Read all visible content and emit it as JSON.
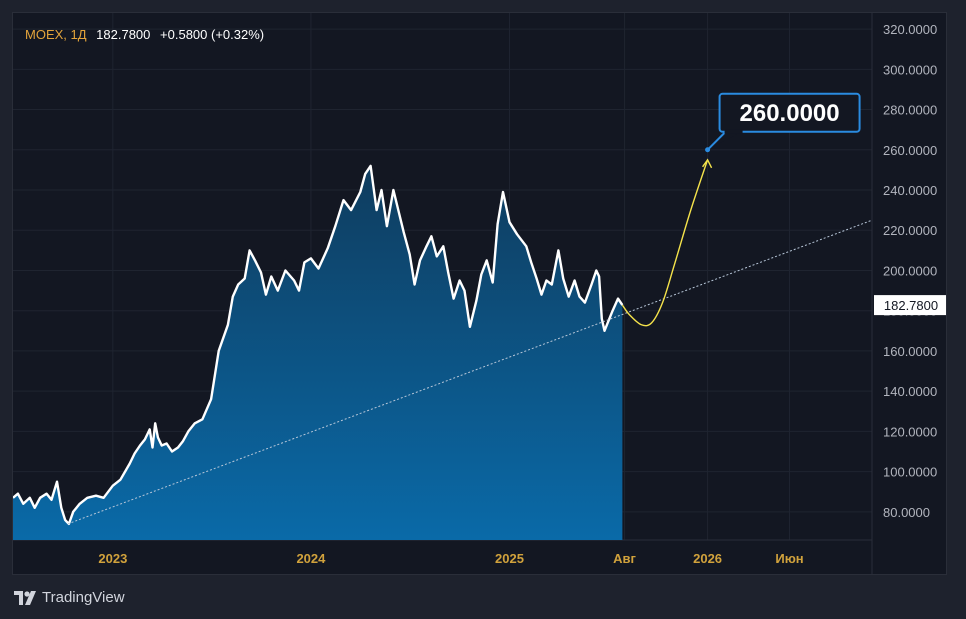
{
  "header": {
    "symbol": "MOEX, 1Д",
    "price": "182.7800",
    "change": "+0.5800 (+0.32%)"
  },
  "footer": {
    "brand": "TradingView",
    "logo_icon": "tradingview-logo-icon"
  },
  "colors": {
    "background": "#131722",
    "line": "#ffffff",
    "area_top": "#0f3c5e",
    "area_bottom": "#0a6aa8",
    "trend": "#b8c7d9",
    "forecast": "#f5e34b",
    "callout": "#2a8be0",
    "axis_text": "#b2b5be",
    "time_text": "#d1a23c"
  },
  "chart_data": {
    "type": "area",
    "y_axis": {
      "range": [
        66,
        328
      ],
      "ticks": [
        "80.0000",
        "100.0000",
        "120.0000",
        "140.0000",
        "160.0000",
        "180.0000",
        "200.0000",
        "220.0000",
        "240.0000",
        "260.0000",
        "280.0000",
        "300.0000",
        "320.0000"
      ],
      "tick_values": [
        80,
        100,
        120,
        140,
        160,
        180,
        200,
        220,
        240,
        260,
        280,
        300,
        320
      ],
      "last_price_label": "182.7800",
      "last_price": 182.78
    },
    "x_axis": {
      "range": [
        "2022-07-01",
        "2026-10-31"
      ],
      "ticks": [
        {
          "label": "2023",
          "date": "2023-01-01"
        },
        {
          "label": "2024",
          "date": "2024-01-01"
        },
        {
          "label": "2025",
          "date": "2025-01-01"
        },
        {
          "label": "Авг",
          "date": "2025-08-01"
        },
        {
          "label": "2026",
          "date": "2026-01-01"
        },
        {
          "label": "Июн",
          "date": "2026-06-01"
        }
      ]
    },
    "grid": true,
    "series": [
      {
        "values": [
          [
            "2022-07-01",
            87
          ],
          [
            "2022-07-10",
            89
          ],
          [
            "2022-07-20",
            84
          ],
          [
            "2022-08-01",
            87
          ],
          [
            "2022-08-10",
            82
          ],
          [
            "2022-08-20",
            87
          ],
          [
            "2022-09-01",
            89
          ],
          [
            "2022-09-10",
            86
          ],
          [
            "2022-09-20",
            95
          ],
          [
            "2022-09-28",
            82
          ],
          [
            "2022-10-05",
            76
          ],
          [
            "2022-10-12",
            74
          ],
          [
            "2022-10-20",
            80
          ],
          [
            "2022-11-01",
            84
          ],
          [
            "2022-11-15",
            87
          ],
          [
            "2022-12-01",
            88
          ],
          [
            "2022-12-15",
            87
          ],
          [
            "2023-01-01",
            93
          ],
          [
            "2023-01-15",
            96
          ],
          [
            "2023-02-01",
            104
          ],
          [
            "2023-02-10",
            109
          ],
          [
            "2023-02-20",
            113
          ],
          [
            "2023-03-01",
            116
          ],
          [
            "2023-03-10",
            121
          ],
          [
            "2023-03-15",
            112
          ],
          [
            "2023-03-20",
            124
          ],
          [
            "2023-03-25",
            117
          ],
          [
            "2023-04-01",
            113
          ],
          [
            "2023-04-10",
            114
          ],
          [
            "2023-04-20",
            110
          ],
          [
            "2023-05-01",
            112
          ],
          [
            "2023-05-10",
            115
          ],
          [
            "2023-05-20",
            120
          ],
          [
            "2023-06-01",
            124
          ],
          [
            "2023-06-15",
            126
          ],
          [
            "2023-07-01",
            136
          ],
          [
            "2023-07-15",
            160
          ],
          [
            "2023-08-01",
            173
          ],
          [
            "2023-08-10",
            187
          ],
          [
            "2023-08-20",
            193
          ],
          [
            "2023-09-01",
            196
          ],
          [
            "2023-09-10",
            210
          ],
          [
            "2023-09-20",
            205
          ],
          [
            "2023-10-01",
            199
          ],
          [
            "2023-10-10",
            188
          ],
          [
            "2023-10-20",
            197
          ],
          [
            "2023-11-01",
            190
          ],
          [
            "2023-11-15",
            200
          ],
          [
            "2023-12-01",
            195
          ],
          [
            "2023-12-10",
            190
          ],
          [
            "2023-12-20",
            204
          ],
          [
            "2024-01-01",
            206
          ],
          [
            "2024-01-15",
            201
          ],
          [
            "2024-02-01",
            211
          ],
          [
            "2024-02-15",
            222
          ],
          [
            "2024-03-01",
            235
          ],
          [
            "2024-03-15",
            230
          ],
          [
            "2024-04-01",
            239
          ],
          [
            "2024-04-10",
            248
          ],
          [
            "2024-04-20",
            252
          ],
          [
            "2024-05-01",
            230
          ],
          [
            "2024-05-10",
            240
          ],
          [
            "2024-05-20",
            222
          ],
          [
            "2024-06-01",
            240
          ],
          [
            "2024-06-10",
            230
          ],
          [
            "2024-06-20",
            219
          ],
          [
            "2024-07-01",
            208
          ],
          [
            "2024-07-10",
            193
          ],
          [
            "2024-07-20",
            205
          ],
          [
            "2024-08-01",
            212
          ],
          [
            "2024-08-10",
            217
          ],
          [
            "2024-08-20",
            207
          ],
          [
            "2024-09-01",
            212
          ],
          [
            "2024-09-10",
            199
          ],
          [
            "2024-09-20",
            186
          ],
          [
            "2024-10-01",
            195
          ],
          [
            "2024-10-10",
            190
          ],
          [
            "2024-10-20",
            172
          ],
          [
            "2024-11-01",
            185
          ],
          [
            "2024-11-10",
            198
          ],
          [
            "2024-11-20",
            205
          ],
          [
            "2024-12-01",
            194
          ],
          [
            "2024-12-10",
            223
          ],
          [
            "2024-12-20",
            239
          ],
          [
            "2025-01-01",
            224
          ],
          [
            "2025-01-15",
            218
          ],
          [
            "2025-02-01",
            212
          ],
          [
            "2025-02-10",
            204
          ],
          [
            "2025-02-20",
            196
          ],
          [
            "2025-03-01",
            188
          ],
          [
            "2025-03-10",
            195
          ],
          [
            "2025-03-20",
            193
          ],
          [
            "2025-04-01",
            210
          ],
          [
            "2025-04-10",
            196
          ],
          [
            "2025-04-20",
            187
          ],
          [
            "2025-05-01",
            195
          ],
          [
            "2025-05-10",
            187
          ],
          [
            "2025-05-20",
            184
          ],
          [
            "2025-06-01",
            193
          ],
          [
            "2025-06-10",
            200
          ],
          [
            "2025-06-15",
            197
          ],
          [
            "2025-06-20",
            176
          ],
          [
            "2025-06-25",
            170
          ],
          [
            "2025-07-01",
            174
          ],
          [
            "2025-07-10",
            180
          ],
          [
            "2025-07-20",
            186
          ],
          [
            "2025-07-28",
            182.78
          ]
        ]
      }
    ],
    "trend_line": {
      "from": [
        "2022-10-10",
        74
      ],
      "to": [
        "2026-10-31",
        225
      ]
    },
    "forecast_path": [
      [
        "2025-07-28",
        182.78
      ],
      [
        "2025-08-10",
        178
      ],
      [
        "2025-09-01",
        173
      ],
      [
        "2025-09-20",
        174
      ],
      [
        "2025-10-10",
        184
      ],
      [
        "2025-11-01",
        203
      ],
      [
        "2025-12-01",
        230
      ],
      [
        "2026-01-01",
        255
      ]
    ],
    "callout": {
      "label": "260.0000",
      "date": "2026-01-01",
      "value": 260
    }
  }
}
